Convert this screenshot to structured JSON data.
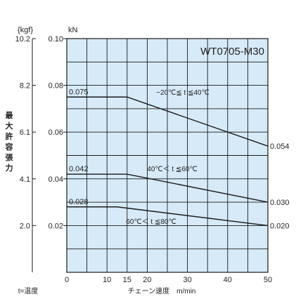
{
  "chart_data": {
    "type": "line",
    "title": "WT0705-M30",
    "xlabel": "チェーン速度　m/min",
    "ylabel": "最大許容張力",
    "y_unit_kn": "kN",
    "y_unit_kgf": "{kgf}",
    "xlim": [
      0,
      50
    ],
    "ylim": [
      0,
      0.1
    ],
    "x_ticks": [
      0,
      10,
      15,
      20,
      30,
      40,
      50
    ],
    "y_ticks_kn": [
      "0.02",
      "0.04",
      "0.06",
      "0.08",
      "0.10"
    ],
    "y_ticks_kgf": [
      "2.0",
      "4.1",
      "6.1",
      "8.2",
      "10.2"
    ],
    "grid": true,
    "series": [
      {
        "name": "−20℃≦ t ≦40℃",
        "x": [
          0,
          15,
          50
        ],
        "y": [
          0.075,
          0.075,
          0.054
        ],
        "start_label": "0.075",
        "end_label": "0.054"
      },
      {
        "name": "40℃＜ t ≦60℃",
        "x": [
          0,
          15,
          50
        ],
        "y": [
          0.042,
          0.042,
          0.03
        ],
        "start_label": "0.042",
        "end_label": "0.030"
      },
      {
        "name": "60℃＜ t ≦80℃",
        "x": [
          0,
          12.5,
          50
        ],
        "y": [
          0.028,
          0.028,
          0.02
        ],
        "start_label": "0.028",
        "end_label": "0.020"
      }
    ],
    "footnote": "t=温度"
  }
}
